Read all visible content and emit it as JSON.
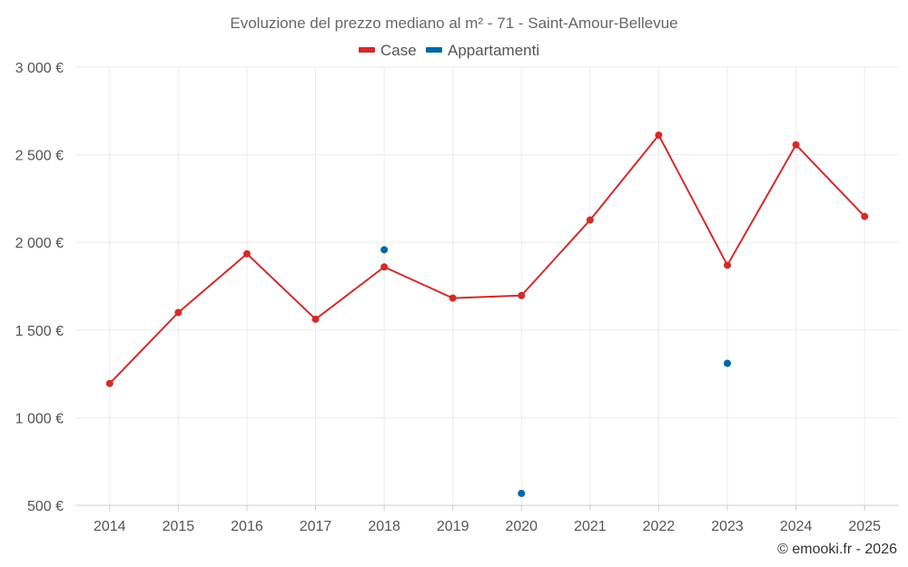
{
  "chart_data": {
    "type": "line",
    "title": "Evoluzione del prezzo mediano al m² - 71 - Saint-Amour-Bellevue",
    "categories": [
      "2014",
      "2015",
      "2016",
      "2017",
      "2018",
      "2019",
      "2020",
      "2021",
      "2022",
      "2023",
      "2024",
      "2025"
    ],
    "ylim": [
      500,
      3000
    ],
    "y_ticks": [
      500,
      1000,
      1500,
      2000,
      2500,
      3000
    ],
    "y_tick_labels": [
      "500 €",
      "1 000 €",
      "1 500 €",
      "2 000 €",
      "2 500 €",
      "3 000 €"
    ],
    "xlabel": "",
    "ylabel": "",
    "grid": true,
    "legend_position": "top-center",
    "series": [
      {
        "name": "Case",
        "color": "#d42a2a",
        "mode": "line+markers",
        "values": [
          1195,
          1600,
          1935,
          1562,
          1860,
          1682,
          1697,
          2128,
          2612,
          1870,
          2557,
          2148
        ]
      },
      {
        "name": "Appartamenti",
        "color": "#0068a5",
        "mode": "markers",
        "values": [
          null,
          null,
          null,
          null,
          1958,
          null,
          568,
          null,
          null,
          1310,
          null,
          null
        ]
      }
    ]
  },
  "credit": "© emooki.fr - 2026"
}
